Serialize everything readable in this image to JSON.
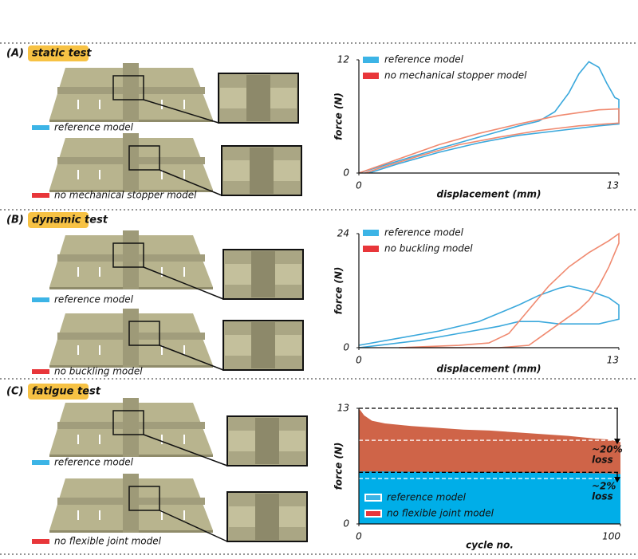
{
  "panels": [
    {
      "label": "(A)",
      "title": "static test",
      "models": [
        "reference model",
        "no mechanical stopper model"
      ]
    },
    {
      "label": "(B)",
      "title": "dynamic test",
      "models": [
        "reference model",
        "no buckling model"
      ]
    },
    {
      "label": "(C)",
      "title": "fatigue test",
      "models": [
        "reference model",
        "no flexible joint model"
      ]
    }
  ],
  "chart_data": [
    {
      "type": "line",
      "x_label": "displacement (mm)",
      "y_label": "force (N)",
      "xlim": [
        0,
        13
      ],
      "ylim": [
        0,
        12
      ],
      "xticks": [
        0,
        13
      ],
      "yticks": [
        0,
        12
      ],
      "series": [
        {
          "name": "reference model",
          "color": "#3aa8dc",
          "swatch_color": "#3cb4e6",
          "x": [
            0,
            2,
            4,
            6,
            8,
            9,
            9.8,
            10.5,
            11,
            11.5,
            12,
            12.4,
            12.8,
            13,
            13,
            12,
            10,
            8,
            6,
            4,
            2,
            0.5
          ],
          "values": [
            0,
            1.3,
            2.6,
            3.8,
            5,
            5.5,
            6.5,
            8.5,
            10.5,
            11.8,
            11.2,
            9.5,
            8,
            7.8,
            5.2,
            5,
            4.5,
            4,
            3.2,
            2.2,
            1,
            0
          ]
        },
        {
          "name": "no mechanical stopper model",
          "color": "#f08a70",
          "swatch_color": "#e8363a",
          "x": [
            0,
            2,
            4,
            6,
            8,
            10,
            12,
            13,
            13,
            11,
            9,
            7,
            5,
            3,
            1,
            0.3
          ],
          "values": [
            0,
            1.5,
            3,
            4.2,
            5.2,
            6.1,
            6.7,
            6.8,
            5.3,
            5,
            4.5,
            3.8,
            3,
            1.8,
            0.5,
            0
          ]
        }
      ]
    },
    {
      "type": "line",
      "x_label": "displacement (mm)",
      "y_label": "force (N)",
      "xlim": [
        0,
        13
      ],
      "ylim": [
        0,
        24
      ],
      "xticks": [
        0,
        13
      ],
      "yticks": [
        0,
        24
      ],
      "series": [
        {
          "name": "reference model",
          "color": "#3aa8dc",
          "swatch_color": "#3cb4e6",
          "x": [
            0,
            2,
            4,
            6,
            8,
            9,
            10,
            10.5,
            11.5,
            12.5,
            13,
            13,
            12,
            10,
            9,
            8,
            7,
            5,
            3,
            1,
            0
          ],
          "values": [
            0.5,
            2,
            3.5,
            5.5,
            9,
            11,
            12.5,
            13,
            12,
            10.5,
            9,
            6,
            5,
            5,
            5.5,
            5.5,
            4.5,
            3,
            1.5,
            0.5,
            0
          ]
        },
        {
          "name": "no buckling model",
          "color": "#f08a70",
          "swatch_color": "#e8363a",
          "x": [
            2,
            5,
            6.5,
            7.5,
            8.5,
            9.5,
            10.5,
            11.5,
            12.5,
            13,
            13,
            12.5,
            12,
            11.5,
            11,
            10,
            9,
            8.5,
            7,
            2
          ],
          "values": [
            0,
            0.5,
            1,
            3,
            8,
            13,
            17,
            20,
            22.5,
            24,
            22,
            17,
            13,
            10,
            8,
            5,
            2,
            0.5,
            0,
            0
          ]
        }
      ]
    },
    {
      "type": "area",
      "x_label": "cycle no.",
      "y_label": "force (N)",
      "xlim": [
        0,
        100
      ],
      "ylim": [
        0,
        13
      ],
      "xticks": [
        0,
        100
      ],
      "yticks": [
        0,
        13
      ],
      "x": [
        0,
        2,
        5,
        10,
        20,
        30,
        40,
        50,
        60,
        70,
        80,
        90,
        95,
        100
      ],
      "series": [
        {
          "name": "no flexible joint model",
          "color": "#cf6448",
          "swatch_color": "#e8363a",
          "values": [
            13,
            12.2,
            11.6,
            11.3,
            11,
            10.8,
            10.6,
            10.5,
            10.3,
            10.1,
            9.9,
            9.6,
            9.5,
            9.2
          ]
        },
        {
          "name": "reference model",
          "color": "#00aee8",
          "swatch_color": "#3cb4e6",
          "values": [
            5.9,
            5.9,
            5.9,
            5.9,
            5.85,
            5.85,
            5.8,
            5.8,
            5.8,
            5.75,
            5.75,
            5.7,
            5.7,
            5.6
          ]
        }
      ],
      "reference_lines": [
        {
          "value": 13,
          "color": "#000000"
        },
        {
          "value": 9.4,
          "color": "#ffffff"
        },
        {
          "value": 5.8,
          "color": "#000000"
        },
        {
          "value": 5.1,
          "color": "#ffffff"
        }
      ],
      "annotations": [
        [
          "~20%",
          "loss"
        ],
        [
          "~2%",
          "loss"
        ]
      ]
    }
  ]
}
